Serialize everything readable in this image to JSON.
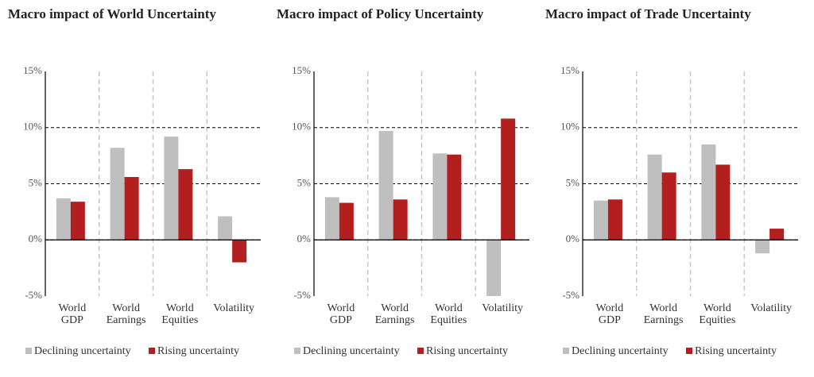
{
  "chart_data": [
    {
      "type": "bar",
      "title": "Macro impact of World Uncertainty",
      "categories": [
        "World GDP",
        "World Earnings",
        "World Equities",
        "Volatility"
      ],
      "series": [
        {
          "name": "Declining uncertainty",
          "color": "#bfbfbf",
          "values": [
            3.7,
            8.2,
            9.2,
            2.1
          ]
        },
        {
          "name": "Rising uncertainty",
          "color": "#b31e1e",
          "values": [
            3.4,
            5.6,
            6.3,
            -2.0
          ]
        }
      ],
      "ylim": [
        -5,
        15
      ],
      "yticks": [
        {
          "value": -5,
          "label": "-5%"
        },
        {
          "value": 0,
          "label": "0%"
        },
        {
          "value": 5,
          "label": "5%"
        },
        {
          "value": 10,
          "label": "10%"
        },
        {
          "value": 15,
          "label": "15%"
        }
      ],
      "grid": true
    },
    {
      "type": "bar",
      "title": "Macro impact of Policy Uncertainty",
      "categories": [
        "World GDP",
        "World Earnings",
        "World Equities",
        "Volatility"
      ],
      "series": [
        {
          "name": "Declining uncertainty",
          "color": "#bfbfbf",
          "values": [
            3.8,
            9.7,
            7.7,
            -5.0
          ]
        },
        {
          "name": "Rising uncertainty",
          "color": "#b31e1e",
          "values": [
            3.3,
            3.6,
            7.6,
            10.8
          ]
        }
      ],
      "ylim": [
        -5,
        15
      ],
      "yticks": [
        {
          "value": -5,
          "label": "-5%"
        },
        {
          "value": 0,
          "label": "0%"
        },
        {
          "value": 5,
          "label": "5%"
        },
        {
          "value": 10,
          "label": "10%"
        },
        {
          "value": 15,
          "label": "15%"
        }
      ],
      "grid": true
    },
    {
      "type": "bar",
      "title": "Macro impact of Trade Uncertainty",
      "categories": [
        "World GDP",
        "World Earnings",
        "World Equities",
        "Volatility"
      ],
      "series": [
        {
          "name": "Declining uncertainty",
          "color": "#bfbfbf",
          "values": [
            3.5,
            7.6,
            8.5,
            -1.2
          ]
        },
        {
          "name": "Rising uncertainty",
          "color": "#b31e1e",
          "values": [
            3.6,
            6.0,
            6.7,
            1.0
          ]
        }
      ],
      "ylim": [
        -5,
        15
      ],
      "yticks": [
        {
          "value": -5,
          "label": "-5%"
        },
        {
          "value": 0,
          "label": "0%"
        },
        {
          "value": 5,
          "label": "5%"
        },
        {
          "value": 10,
          "label": "10%"
        },
        {
          "value": 15,
          "label": "15%"
        }
      ],
      "grid": true
    }
  ]
}
